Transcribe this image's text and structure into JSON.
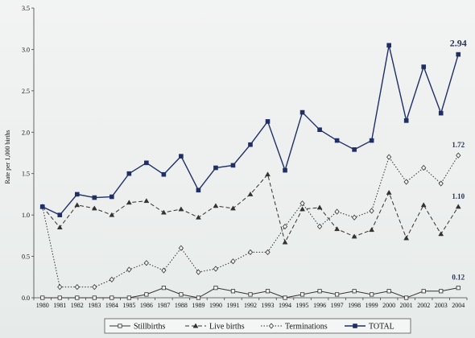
{
  "chart_data": {
    "type": "line",
    "ylabel": "Rate per 1,000 births",
    "xlabel": "",
    "ylim": [
      0,
      3.5
    ],
    "yticks": [
      "0.0",
      "0.5",
      "1.0",
      "1.5",
      "2.0",
      "2.5",
      "3.0",
      "3.5"
    ],
    "categories": [
      "1980",
      "1981",
      "1982",
      "1983",
      "1984",
      "1985",
      "1986",
      "1987",
      "1988",
      "1989",
      "1990",
      "1991",
      "1992",
      "1993",
      "1994",
      "1995",
      "1996",
      "1997",
      "1998",
      "1999",
      "2000",
      "2001",
      "2002",
      "2003",
      "2004"
    ],
    "grid": false,
    "legend_position": "bottom",
    "series": [
      {
        "name": "Stillbirths",
        "style": "solid",
        "marker": "square-open",
        "color": "#333333",
        "values": [
          0,
          0,
          0,
          0,
          0,
          0,
          0.04,
          0.12,
          0.04,
          0,
          0.12,
          0.08,
          0.04,
          0.08,
          0,
          0.04,
          0.08,
          0.04,
          0.08,
          0.04,
          0.08,
          0,
          0.08,
          0.08,
          0.12
        ]
      },
      {
        "name": "Live births",
        "style": "dashed",
        "marker": "triangle",
        "color": "#333333",
        "values": [
          1.1,
          0.85,
          1.12,
          1.08,
          1.0,
          1.15,
          1.17,
          1.03,
          1.07,
          0.97,
          1.11,
          1.08,
          1.25,
          1.49,
          0.67,
          1.07,
          1.09,
          0.83,
          0.74,
          0.82,
          1.27,
          0.72,
          1.12,
          0.77,
          1.1
        ]
      },
      {
        "name": "Terminations",
        "style": "dotted",
        "marker": "diamond-open",
        "color": "#333333",
        "values": [
          1.1,
          0.13,
          0.13,
          0.13,
          0.22,
          0.34,
          0.42,
          0.33,
          0.6,
          0.31,
          0.35,
          0.44,
          0.55,
          0.55,
          0.86,
          1.14,
          0.86,
          1.04,
          0.97,
          1.05,
          1.7,
          1.4,
          1.57,
          1.38,
          1.72
        ]
      },
      {
        "name": "TOTAL",
        "style": "solid",
        "marker": "square-filled",
        "color": "#1f2f66",
        "values": [
          1.1,
          1.0,
          1.25,
          1.21,
          1.22,
          1.5,
          1.63,
          1.49,
          1.71,
          1.3,
          1.57,
          1.6,
          1.85,
          2.13,
          1.54,
          2.24,
          2.03,
          1.9,
          1.79,
          1.9,
          3.05,
          2.14,
          2.79,
          2.23,
          2.94
        ]
      }
    ],
    "end_labels": [
      {
        "series": "TOTAL",
        "text": "2.94"
      },
      {
        "series": "Terminations",
        "text": "1.72"
      },
      {
        "series": "Live births",
        "text": "1.10"
      },
      {
        "series": "Stillbirths",
        "text": "0.12"
      }
    ]
  }
}
